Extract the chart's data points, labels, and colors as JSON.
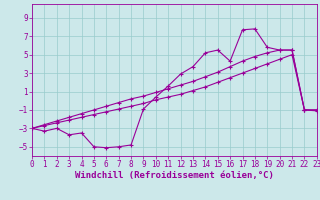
{
  "bg_color": "#cce8ea",
  "grid_color": "#99cccc",
  "line_color": "#990099",
  "xlim": [
    0,
    23
  ],
  "ylim": [
    -6,
    10.5
  ],
  "xticks": [
    0,
    1,
    2,
    3,
    4,
    5,
    6,
    7,
    8,
    9,
    10,
    11,
    12,
    13,
    14,
    15,
    16,
    17,
    18,
    19,
    20,
    21,
    22,
    23
  ],
  "yticks": [
    -5,
    -3,
    -1,
    1,
    3,
    5,
    7,
    9
  ],
  "xlabel": "Windchill (Refroidissement éolien,°C)",
  "line1_x": [
    0,
    1,
    2,
    3,
    4,
    5,
    6,
    7,
    8,
    9,
    10,
    11,
    12,
    13,
    14,
    15,
    16,
    17,
    18,
    19,
    20,
    21,
    22,
    23
  ],
  "line1_y": [
    -3.0,
    -3.3,
    -3.0,
    -3.7,
    -3.5,
    -5.0,
    -5.1,
    -5.0,
    -4.8,
    -0.9,
    0.4,
    1.6,
    2.9,
    3.7,
    5.2,
    5.5,
    4.3,
    7.7,
    7.8,
    5.8,
    5.5,
    5.5,
    -1.0,
    -1.1
  ],
  "line2_x": [
    0,
    1,
    2,
    3,
    4,
    5,
    6,
    7,
    8,
    9,
    10,
    11,
    12,
    13,
    14,
    15,
    16,
    17,
    18,
    19,
    20,
    21,
    22,
    23
  ],
  "line2_y": [
    -3.0,
    -2.7,
    -2.4,
    -2.1,
    -1.8,
    -1.5,
    -1.2,
    -0.9,
    -0.6,
    -0.3,
    0.1,
    0.4,
    0.7,
    1.1,
    1.5,
    2.0,
    2.5,
    3.0,
    3.5,
    4.0,
    4.5,
    5.0,
    -1.0,
    -1.0
  ],
  "line3_x": [
    0,
    1,
    2,
    3,
    4,
    5,
    6,
    7,
    8,
    9,
    10,
    11,
    12,
    13,
    14,
    15,
    16,
    17,
    18,
    19,
    20,
    21,
    22,
    23
  ],
  "line3_y": [
    -3.0,
    -2.6,
    -2.2,
    -1.8,
    -1.4,
    -1.0,
    -0.6,
    -0.2,
    0.2,
    0.5,
    0.9,
    1.3,
    1.7,
    2.1,
    2.6,
    3.1,
    3.7,
    4.3,
    4.8,
    5.2,
    5.5,
    5.5,
    -1.0,
    -1.0
  ],
  "tick_fontsize": 5.5,
  "xlabel_fontsize": 6.5
}
